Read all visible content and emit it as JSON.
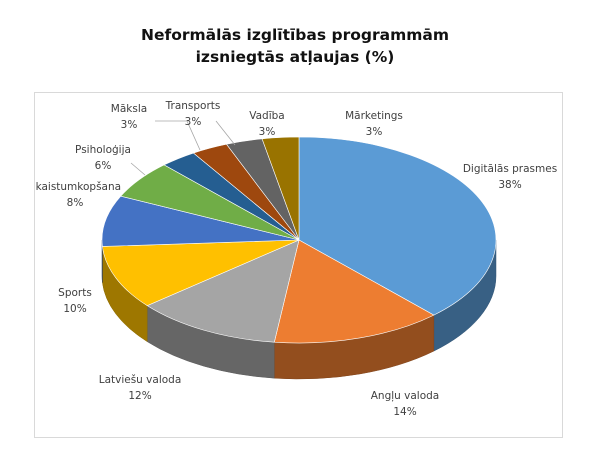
{
  "title": {
    "line1": "Neformālās izglītības programmām",
    "line2": "izsniegtās atļaujas (%)"
  },
  "chart_data": {
    "type": "pie",
    "title": "Neformālās izglītības programmām izsniegtās atļaujas (%)",
    "style": "3d-exploded-none",
    "slices": [
      {
        "label": "Digitālās prasmes",
        "value": 38,
        "display": "38%",
        "color": "#5b9bd5"
      },
      {
        "label": "Angļu valoda",
        "value": 14,
        "display": "14%",
        "color": "#ed7d31"
      },
      {
        "label": "Latviešu valoda",
        "value": 12,
        "display": "12%",
        "color": "#a5a5a5"
      },
      {
        "label": "Sports",
        "value": 10,
        "display": "10%",
        "color": "#ffc000"
      },
      {
        "label": "Skaistumkopšana",
        "value": 8,
        "display": "8%",
        "color": "#4472c4"
      },
      {
        "label": "Psiholoģija",
        "value": 6,
        "display": "6%",
        "color": "#70ad47"
      },
      {
        "label": "Māksla",
        "value": 3,
        "display": "3%",
        "color": "#255e91"
      },
      {
        "label": "Transports",
        "value": 3,
        "display": "3%",
        "color": "#9e480e"
      },
      {
        "label": "Vadība",
        "value": 3,
        "display": "3%",
        "color": "#636363"
      },
      {
        "label": "Mārketings",
        "value": 3,
        "display": "3%",
        "color": "#997300"
      }
    ],
    "legend": "none",
    "data_labels": "outside"
  }
}
